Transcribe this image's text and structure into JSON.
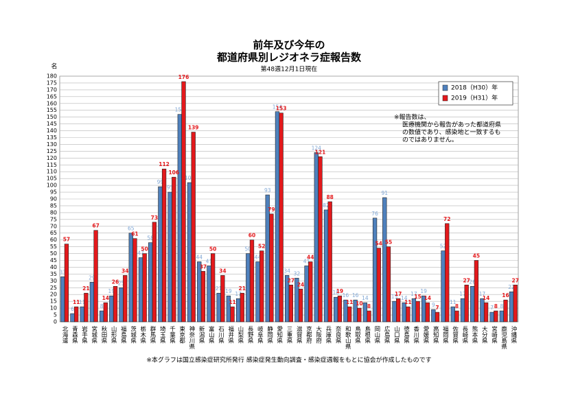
{
  "chart_data": {
    "type": "bar",
    "title": [
      "前年及び今年の",
      "都道府県別レジオネラ症報告数"
    ],
    "subtitle": "第48週12月1日現在",
    "y_label": "名",
    "categories": [
      "北海道",
      "青森県",
      "岩手県",
      "宮城県",
      "秋田県",
      "山形県",
      "福島県",
      "茨城県",
      "栃木県",
      "群馬県",
      "埼玉県",
      "千葉県",
      "東京都",
      "神奈川県",
      "新潟県",
      "富山県",
      "石川県",
      "福井県",
      "山梨県",
      "長野県",
      "岐阜県",
      "静岡県",
      "愛知県",
      "三重県",
      "滋賀県",
      "京都府",
      "大阪府",
      "兵庫県",
      "奈良県",
      "和歌山県",
      "鳥取県",
      "島根県",
      "岡山県",
      "広島県",
      "山口県",
      "徳島県",
      "香川県",
      "愛媛県",
      "高知県",
      "福岡県",
      "佐賀県",
      "長崎県",
      "熊本県",
      "大分県",
      "宮崎県",
      "鹿児島県",
      "沖縄県"
    ],
    "series": [
      {
        "name": "2018（H30）年",
        "color": "#4f81bd",
        "label_color": "#7fa6d4",
        "values": [
          33,
          6,
          11,
          29,
          8,
          19,
          25,
          65,
          47,
          58,
          99,
          95,
          152,
          102,
          44,
          41,
          21,
          19,
          17,
          50,
          44,
          93,
          154,
          34,
          32,
          41,
          124,
          82,
          18,
          16,
          16,
          14,
          76,
          91,
          15,
          14,
          17,
          19,
          9,
          52,
          11,
          17,
          26,
          17,
          7,
          8,
          22
        ]
      },
      {
        "name": "2019（H31）年",
        "color": "#e3191c",
        "label_color": "#e3191c",
        "values": [
          57,
          11,
          21,
          67,
          14,
          26,
          34,
          61,
          50,
          73,
          112,
          106,
          176,
          139,
          37,
          50,
          34,
          11,
          21,
          60,
          52,
          79,
          153,
          27,
          24,
          44,
          121,
          88,
          19,
          11,
          10,
          8,
          54,
          55,
          17,
          11,
          15,
          14,
          7,
          72,
          8,
          27,
          45,
          14,
          8,
          16,
          27
        ]
      }
    ],
    "ylim": [
      0,
      180
    ],
    "yticks": [
      0,
      5,
      10,
      15,
      20,
      25,
      30,
      35,
      40,
      45,
      50,
      55,
      60,
      65,
      70,
      75,
      80,
      85,
      90,
      95,
      100,
      105,
      110,
      115,
      120,
      125,
      130,
      135,
      140,
      145,
      150,
      155,
      160,
      165,
      170,
      175,
      180
    ],
    "grid": true,
    "legend": "upper right",
    "annotation": [
      "※報告数は、",
      "医療機関から報告があった都道府県",
      "の数値であり、感染地と一致するも",
      "のではありません。"
    ],
    "footnote": "※本グラフは国立感染症研究所発行 感染症発生動向調査・感染症週報をもとに協会が作成したものです"
  }
}
